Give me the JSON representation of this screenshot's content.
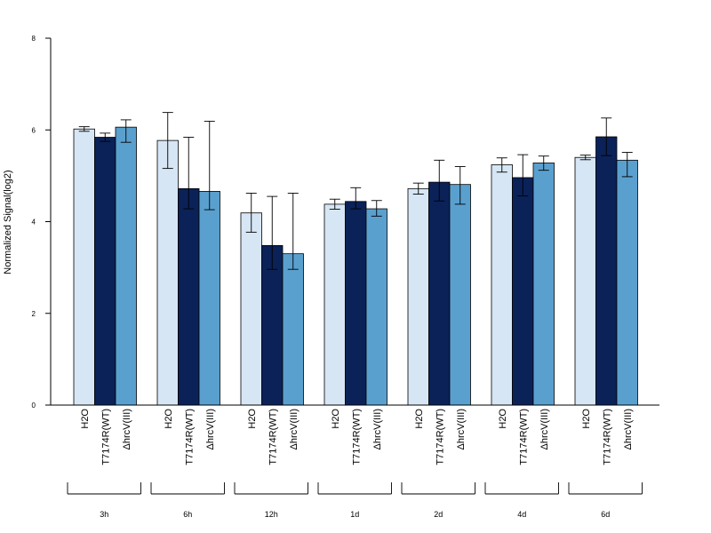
{
  "chart_data": {
    "type": "bar",
    "ylabel": "Normalized Signal(log2)",
    "ylim": [
      0,
      8
    ],
    "yticks": [
      0,
      2,
      4,
      6,
      8
    ],
    "groups": [
      "3h",
      "6h",
      "12h",
      "1d",
      "2d",
      "4d",
      "6d"
    ],
    "bar_labels": [
      "H2O",
      "T7174R(WT)",
      "ΔhrcV(III)"
    ],
    "series": [
      {
        "name": "H2O",
        "color": "#d6e6f5",
        "values": [
          6.02,
          5.77,
          4.19,
          4.38,
          4.72,
          5.24,
          5.4
        ],
        "err_low": [
          5.97,
          5.16,
          3.77,
          4.27,
          4.6,
          5.08,
          5.35
        ],
        "err_high": [
          6.07,
          6.38,
          4.62,
          4.49,
          4.84,
          5.39,
          5.45
        ]
      },
      {
        "name": "T7174R(WT)",
        "color": "#0b2258",
        "values": [
          5.84,
          4.72,
          3.48,
          4.44,
          4.86,
          4.96,
          5.85
        ],
        "err_low": [
          5.75,
          4.28,
          2.96,
          4.28,
          4.45,
          4.56,
          5.44
        ],
        "err_high": [
          5.93,
          5.84,
          4.55,
          4.74,
          5.34,
          5.46,
          6.26
        ]
      },
      {
        "name": "ΔhrcV(III)",
        "color": "#5aa0cf",
        "values": [
          6.06,
          4.66,
          3.3,
          4.28,
          4.81,
          5.28,
          5.34
        ],
        "err_low": [
          5.73,
          4.26,
          2.96,
          4.12,
          4.38,
          5.12,
          4.98
        ],
        "err_high": [
          6.22,
          6.19,
          4.62,
          4.46,
          5.2,
          5.43,
          5.51
        ]
      }
    ],
    "grid": false,
    "legend": "none"
  }
}
